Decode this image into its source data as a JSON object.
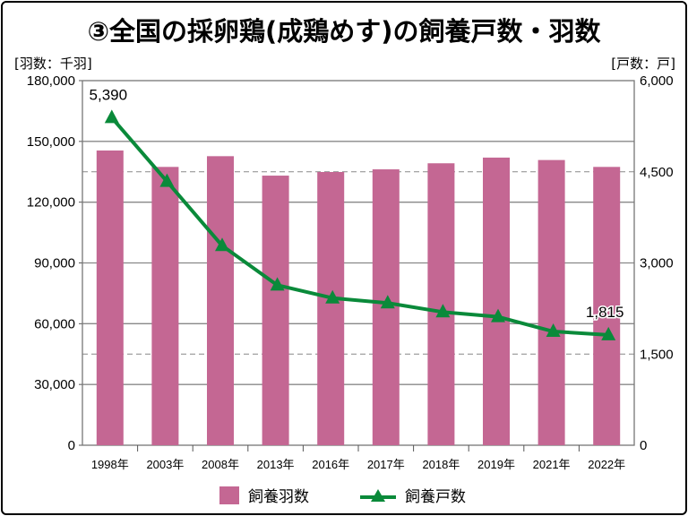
{
  "chart_data": {
    "type": "bar",
    "title": "③全国の採卵鶏(成鶏めす)の飼養戸数・羽数",
    "y_left_label": "[羽数：千羽]",
    "y_right_label": "[戸数：戸]",
    "categories": [
      "1998年",
      "2003年",
      "2008年",
      "2013年",
      "2016年",
      "2017年",
      "2018年",
      "2019年",
      "2021年",
      "2022年"
    ],
    "y_left_lim": [
      0,
      180000
    ],
    "y_left_ticks": [
      "0",
      "30,000",
      "60,000",
      "90,000",
      "120,000",
      "150,000",
      "180,000"
    ],
    "y_right_lim": [
      0,
      6000
    ],
    "y_right_ticks": [
      "0",
      "1,500",
      "3,000",
      "4,500",
      "6,000"
    ],
    "grid": true,
    "legend_placement": "bottom",
    "series": [
      {
        "name": "飼養羽数",
        "type": "bar",
        "axis": "left",
        "color": "#c46793",
        "values": [
          145500,
          137400,
          142700,
          133100,
          134900,
          136200,
          139200,
          142000,
          140800,
          137400
        ]
      },
      {
        "name": "飼養戸数",
        "type": "line",
        "axis": "right",
        "color": "#0a8a3a",
        "marker": "triangle",
        "values": [
          5390,
          4340,
          3283,
          2634,
          2422,
          2340,
          2192,
          2113,
          1872,
          1815
        ]
      }
    ],
    "annotations": [
      {
        "category": "1998年",
        "text": "5,390"
      },
      {
        "category": "2022年",
        "text": "1,815"
      }
    ]
  }
}
